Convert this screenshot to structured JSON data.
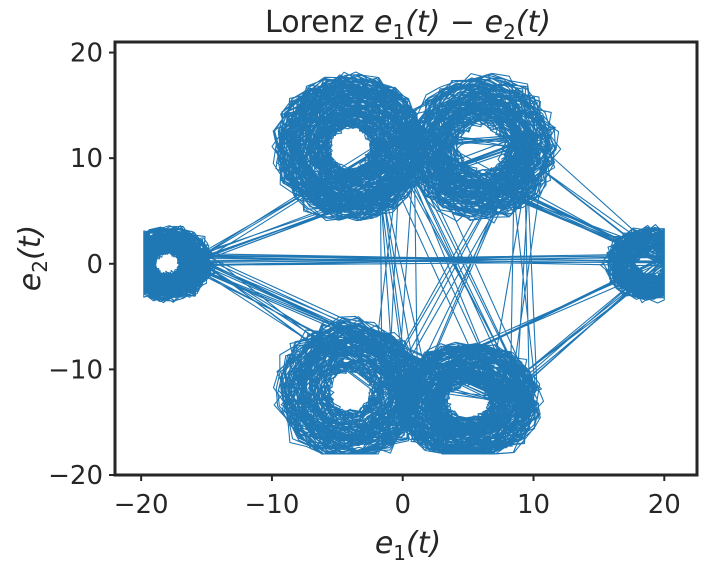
{
  "chart_data": {
    "type": "line",
    "title": {
      "prefix": "Lorenz ",
      "base1": "e",
      "sub1": "1",
      "mid": "(t) − ",
      "base2": "e",
      "sub2": "2",
      "suffix": "(t)"
    },
    "xlabel": {
      "base": "e",
      "sub": "1",
      "suffix": "(t)"
    },
    "ylabel": {
      "base": "e",
      "sub": "2",
      "suffix": "(t)"
    },
    "xlim": [
      -22,
      22.5
    ],
    "ylim": [
      -20,
      21
    ],
    "xticks": [
      -20,
      -10,
      0,
      10,
      20
    ],
    "yticks": [
      -20,
      -10,
      0,
      10,
      20
    ],
    "xtick_labels": [
      "−20",
      "−10",
      "0",
      "10",
      "20"
    ],
    "ytick_labels": [
      "−20",
      "−10",
      "0",
      "10",
      "20"
    ],
    "grid": false,
    "series": [
      {
        "color": "#1f77b4",
        "description_free": true,
        "lobes": [
          {
            "cx": -4,
            "cy": 11,
            "rx": 5,
            "ry": 6
          },
          {
            "cx": 6,
            "cy": 11,
            "rx": 5,
            "ry": 6
          },
          {
            "cx": -4,
            "cy": -12,
            "rx": 5,
            "ry": 6
          },
          {
            "cx": 5,
            "cy": -13,
            "rx": 5,
            "ry": 5
          },
          {
            "cx": -18,
            "cy": 0,
            "rx": 3,
            "ry": 3
          },
          {
            "cx": 19,
            "cy": 0,
            "rx": 3,
            "ry": 3
          }
        ],
        "extent": {
          "xmin": -19.8,
          "xmax": 20,
          "ymin": -18,
          "ymax": 19
        }
      }
    ]
  }
}
